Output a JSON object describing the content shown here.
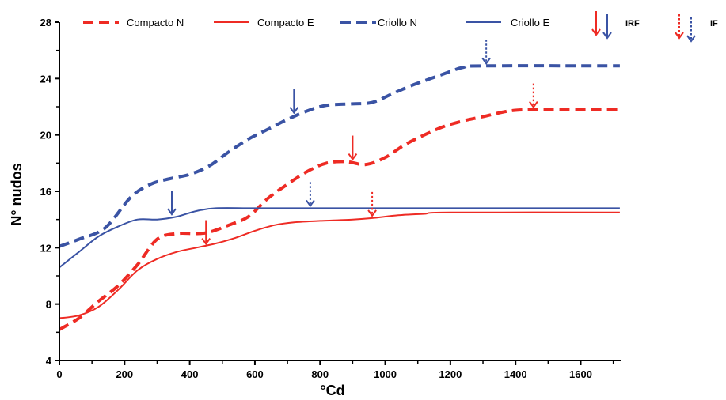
{
  "chart_data": {
    "type": "line",
    "xlabel": "°Cd",
    "ylabel": "N° nudos",
    "xlim": [
      0,
      1730
    ],
    "ylim": [
      4,
      28
    ],
    "x_ticks": [
      0,
      200,
      400,
      600,
      800,
      1000,
      1200,
      1400,
      1600
    ],
    "y_ticks": [
      4,
      8,
      12,
      16,
      20,
      24,
      28
    ],
    "grid": false,
    "legend_position": "top",
    "colors": {
      "red": "#ee2b24",
      "blue": "#3a53a4"
    },
    "series": [
      {
        "name": "Compacto N",
        "color": "#ee2b24",
        "dash": "dashed",
        "points": [
          [
            0,
            6.2
          ],
          [
            60,
            7.0
          ],
          [
            120,
            8.2
          ],
          [
            180,
            9.3
          ],
          [
            240,
            10.8
          ],
          [
            300,
            12.6
          ],
          [
            360,
            13.0
          ],
          [
            420,
            13.0
          ],
          [
            460,
            13.1
          ],
          [
            520,
            13.6
          ],
          [
            580,
            14.2
          ],
          [
            640,
            15.5
          ],
          [
            700,
            16.5
          ],
          [
            760,
            17.4
          ],
          [
            820,
            18.0
          ],
          [
            880,
            18.1
          ],
          [
            940,
            17.9
          ],
          [
            1000,
            18.4
          ],
          [
            1060,
            19.3
          ],
          [
            1120,
            20.0
          ],
          [
            1180,
            20.6
          ],
          [
            1240,
            21.0
          ],
          [
            1300,
            21.3
          ],
          [
            1380,
            21.7
          ],
          [
            1450,
            21.8
          ],
          [
            1500,
            21.8
          ],
          [
            1720,
            21.8
          ]
        ]
      },
      {
        "name": "Compacto E",
        "color": "#ee2b24",
        "dash": "solid",
        "points": [
          [
            0,
            7.0
          ],
          [
            60,
            7.2
          ],
          [
            120,
            7.8
          ],
          [
            180,
            9.0
          ],
          [
            240,
            10.4
          ],
          [
            300,
            11.2
          ],
          [
            360,
            11.7
          ],
          [
            420,
            12.0
          ],
          [
            480,
            12.3
          ],
          [
            540,
            12.7
          ],
          [
            600,
            13.2
          ],
          [
            660,
            13.6
          ],
          [
            720,
            13.8
          ],
          [
            800,
            13.9
          ],
          [
            900,
            14.0
          ],
          [
            960,
            14.1
          ],
          [
            1040,
            14.3
          ],
          [
            1120,
            14.4
          ],
          [
            1200,
            14.5
          ],
          [
            1720,
            14.5
          ]
        ]
      },
      {
        "name": "Criollo N",
        "color": "#3a53a4",
        "dash": "dashed",
        "points": [
          [
            0,
            12.1
          ],
          [
            60,
            12.6
          ],
          [
            140,
            13.4
          ],
          [
            220,
            15.6
          ],
          [
            280,
            16.5
          ],
          [
            340,
            16.9
          ],
          [
            400,
            17.2
          ],
          [
            460,
            17.8
          ],
          [
            520,
            18.8
          ],
          [
            580,
            19.7
          ],
          [
            640,
            20.4
          ],
          [
            700,
            21.1
          ],
          [
            760,
            21.7
          ],
          [
            820,
            22.1
          ],
          [
            900,
            22.2
          ],
          [
            960,
            22.3
          ],
          [
            1020,
            22.9
          ],
          [
            1080,
            23.5
          ],
          [
            1140,
            24.0
          ],
          [
            1200,
            24.5
          ],
          [
            1240,
            24.8
          ],
          [
            1300,
            24.9
          ],
          [
            1720,
            24.9
          ]
        ]
      },
      {
        "name": "Criollo E",
        "color": "#3a53a4",
        "dash": "solid",
        "points": [
          [
            0,
            10.6
          ],
          [
            60,
            11.7
          ],
          [
            120,
            12.8
          ],
          [
            180,
            13.5
          ],
          [
            240,
            14.0
          ],
          [
            300,
            14.0
          ],
          [
            360,
            14.2
          ],
          [
            420,
            14.6
          ],
          [
            480,
            14.8
          ],
          [
            600,
            14.8
          ],
          [
            800,
            14.8
          ],
          [
            960,
            14.8
          ],
          [
            1200,
            14.8
          ],
          [
            1720,
            14.8
          ]
        ]
      }
    ],
    "arrows": [
      {
        "series": "Criollo E",
        "kind": "IRF",
        "x": 345,
        "y_tip": 14.2,
        "color": "#3a53a4"
      },
      {
        "series": "Criollo N",
        "kind": "IRF",
        "x": 720,
        "y_tip": 21.4,
        "color": "#3a53a4"
      },
      {
        "series": "Criollo E",
        "kind": "IF",
        "x": 770,
        "y_tip": 14.8,
        "color": "#3a53a4"
      },
      {
        "series": "Criollo N",
        "kind": "IF",
        "x": 1310,
        "y_tip": 24.9,
        "color": "#3a53a4"
      },
      {
        "series": "Compacto E",
        "kind": "IRF",
        "x": 450,
        "y_tip": 12.1,
        "color": "#ee2b24"
      },
      {
        "series": "Compacto N",
        "kind": "IRF",
        "x": 900,
        "y_tip": 18.1,
        "color": "#ee2b24"
      },
      {
        "series": "Compacto E",
        "kind": "IF",
        "x": 960,
        "y_tip": 14.1,
        "color": "#ee2b24"
      },
      {
        "series": "Compacto N",
        "kind": "IF",
        "x": 1455,
        "y_tip": 21.8,
        "color": "#ee2b24"
      }
    ]
  },
  "legend": {
    "items": [
      {
        "label": "Compacto N",
        "color": "#ee2b24",
        "dash": "dashed"
      },
      {
        "label": "Compacto E",
        "color": "#ee2b24",
        "dash": "solid"
      },
      {
        "label": "Criollo N",
        "color": "#3a53a4",
        "dash": "dashed"
      },
      {
        "label": "Criollo E",
        "color": "#3a53a4",
        "dash": "solid"
      }
    ],
    "arrow_keys": [
      {
        "label": "IRF",
        "style": "solid"
      },
      {
        "label": "IF",
        "style": "dotted"
      }
    ]
  }
}
